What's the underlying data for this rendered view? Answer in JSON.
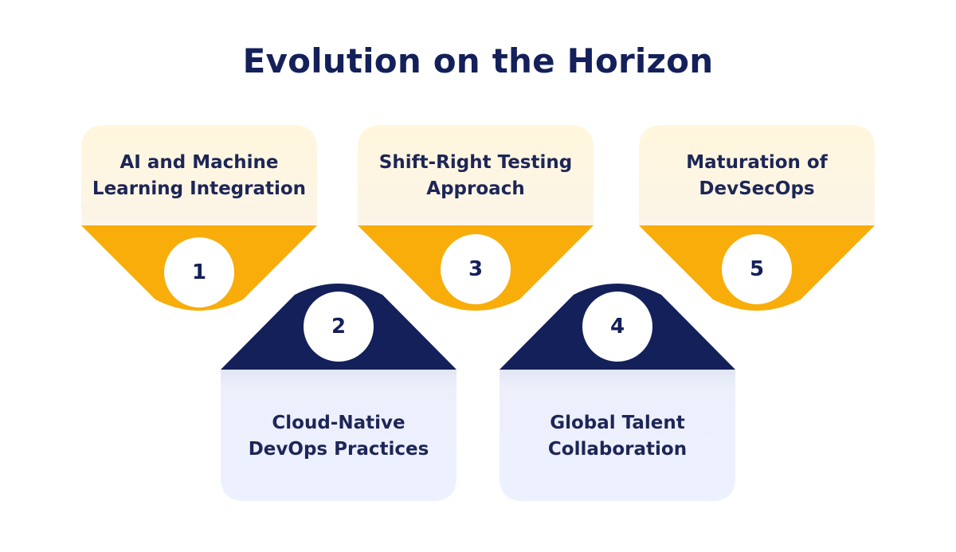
{
  "title": "Evolution on the Horizon",
  "steps": [
    {
      "number": "1",
      "label": "AI and Machine\nLearning Integration",
      "group": "top"
    },
    {
      "number": "2",
      "label": "Cloud-Native\nDevOps Practices",
      "group": "bottom"
    },
    {
      "number": "3",
      "label": "Shift-Right Testing\nApproach",
      "group": "top"
    },
    {
      "number": "4",
      "label": "Global Talent\nCollaboration",
      "group": "bottom"
    },
    {
      "number": "5",
      "label": "Maturation of\nDevSecOps",
      "group": "top"
    }
  ],
  "colors": {
    "title": "#14205a",
    "top_card": "#fdf6e2",
    "top_funnel": "#f8ad0a",
    "bottom_card": "#ebefff",
    "bottom_funnel": "#14205a",
    "circle": "#ffffff",
    "text": "#1d2657"
  }
}
